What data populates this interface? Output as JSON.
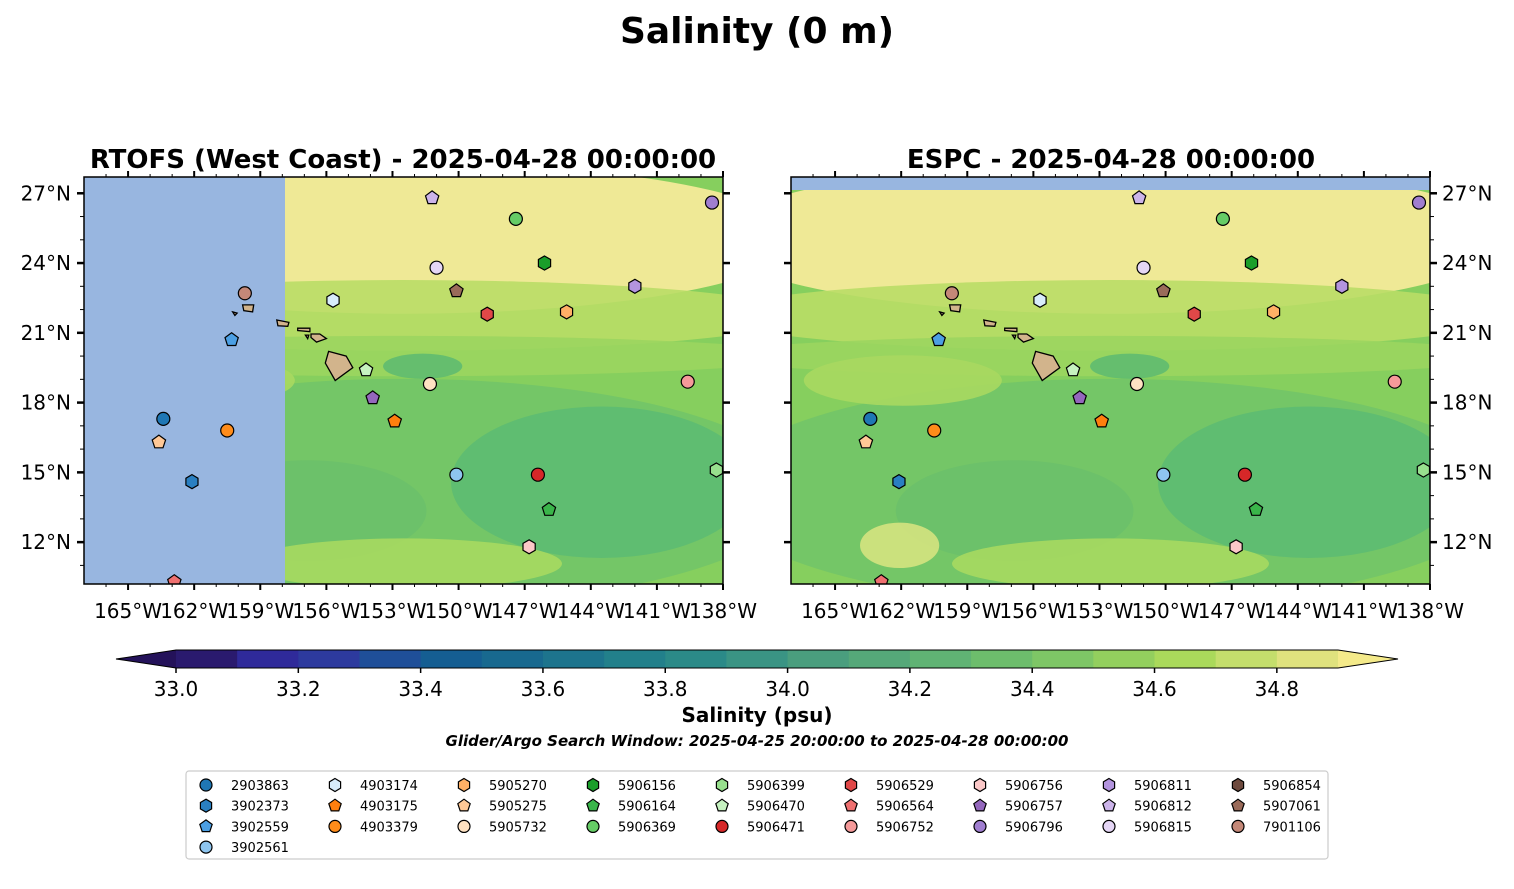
{
  "title": "Salinity (0 m)",
  "chart_data": {
    "type": "heatmap",
    "panels": [
      {
        "id": "rtofs",
        "title": "RTOFS (West Coast) - 2025-04-28 00:00:00",
        "no_data_east_lon": -157.4
      },
      {
        "id": "espc",
        "title": "ESPC - 2025-04-28 00:00:00",
        "no_data_north_lat": 27.6
      }
    ],
    "extent": {
      "lon": [
        -167,
        -138
      ],
      "lat": [
        10.2,
        27.7
      ]
    },
    "x_ticks": [
      "165°W",
      "162°W",
      "159°W",
      "156°W",
      "153°W",
      "150°W",
      "147°W",
      "144°W",
      "141°W",
      "138°W"
    ],
    "y_ticks": [
      "27°N",
      "24°N",
      "21°N",
      "18°N",
      "15°N",
      "12°N"
    ],
    "colorbar": {
      "label": "Salinity (psu)",
      "min": 33.0,
      "max": 34.9,
      "step": 0.1,
      "extend": "both",
      "tick_labels": [
        "33.0",
        "33.2",
        "33.4",
        "33.6",
        "33.8",
        "34.0",
        "34.2",
        "34.4",
        "34.6",
        "34.8"
      ]
    },
    "subtitle": "Glider/Argo Search Window: 2025-04-25 20:00:00 to 2025-04-28 00:00:00",
    "floats": [
      {
        "id": "2903863",
        "marker": "circle",
        "color": "#1f77b4",
        "lon": -163.4,
        "lat": 17.3
      },
      {
        "id": "3902373",
        "marker": "hexagon",
        "color": "#2a7fc1",
        "lon": -162.1,
        "lat": 14.6
      },
      {
        "id": "3902559",
        "marker": "pentagon",
        "color": "#4c9fe3",
        "lon": -160.3,
        "lat": 20.7
      },
      {
        "id": "3902561",
        "marker": "circle",
        "color": "#8ec5ef",
        "lon": -150.1,
        "lat": 14.9
      },
      {
        "id": "4903174",
        "marker": "hexagon",
        "color": "#d8ecfb",
        "lon": -155.7,
        "lat": 22.4
      },
      {
        "id": "4903175",
        "marker": "pentagon",
        "color": "#ff7f0e",
        "lon": -152.9,
        "lat": 17.2
      },
      {
        "id": "4903379",
        "marker": "circle",
        "color": "#ff8c1a",
        "lon": -160.5,
        "lat": 16.8
      },
      {
        "id": "5905270",
        "marker": "hexagon",
        "color": "#ffb066",
        "lon": -145.1,
        "lat": 21.9
      },
      {
        "id": "5905275",
        "marker": "pentagon",
        "color": "#ffc896",
        "lon": -163.6,
        "lat": 16.3
      },
      {
        "id": "5905732",
        "marker": "circle",
        "color": "#ffe2c2",
        "lon": -151.3,
        "lat": 18.8
      },
      {
        "id": "5906156",
        "marker": "hexagon",
        "color": "#1a9e2a",
        "lon": -146.1,
        "lat": 24.0
      },
      {
        "id": "5906164",
        "marker": "pentagon",
        "color": "#3ab54a",
        "lon": -145.9,
        "lat": 13.4
      },
      {
        "id": "5906369",
        "marker": "circle",
        "color": "#66cc66",
        "lon": -147.4,
        "lat": 25.9
      },
      {
        "id": "5906399",
        "marker": "hexagon",
        "color": "#98e08e",
        "lon": -138.3,
        "lat": 15.1
      },
      {
        "id": "5906470",
        "marker": "pentagon",
        "color": "#c6f2c0",
        "lon": -154.2,
        "lat": 19.4
      },
      {
        "id": "5906471",
        "marker": "circle",
        "color": "#d62728",
        "lon": -146.4,
        "lat": 14.9
      },
      {
        "id": "5906529",
        "marker": "hexagon",
        "color": "#e04848",
        "lon": -148.7,
        "lat": 21.8
      },
      {
        "id": "5906564",
        "marker": "pentagon",
        "color": "#ef7070",
        "lon": -162.9,
        "lat": 10.3
      },
      {
        "id": "5906752",
        "marker": "circle",
        "color": "#f59a9a",
        "lon": -139.6,
        "lat": 18.9
      },
      {
        "id": "5906756",
        "marker": "hexagon",
        "color": "#fbc8c8",
        "lon": -146.8,
        "lat": 11.8
      },
      {
        "id": "5906757",
        "marker": "pentagon",
        "color": "#9467bd",
        "lon": -153.9,
        "lat": 18.2
      },
      {
        "id": "5906796",
        "marker": "circle",
        "color": "#a07ed0",
        "lon": -138.5,
        "lat": 26.6
      },
      {
        "id": "5906811",
        "marker": "hexagon",
        "color": "#b394de",
        "lon": -142.0,
        "lat": 23.0
      },
      {
        "id": "5906812",
        "marker": "pentagon",
        "color": "#ccb4ea",
        "lon": -151.2,
        "lat": 26.8
      },
      {
        "id": "5906815",
        "marker": "circle",
        "color": "#e5d6f5",
        "lon": -151.0,
        "lat": 23.8
      },
      {
        "id": "5906854",
        "marker": "hexagon",
        "color": "#6e4a3e",
        "lon": null,
        "lat": null
      },
      {
        "id": "5907061",
        "marker": "pentagon",
        "color": "#9a6b5a",
        "lon": -150.1,
        "lat": 22.8
      },
      {
        "id": "7901106",
        "marker": "circle",
        "color": "#c48878",
        "lon": -159.7,
        "lat": 22.7
      }
    ]
  }
}
